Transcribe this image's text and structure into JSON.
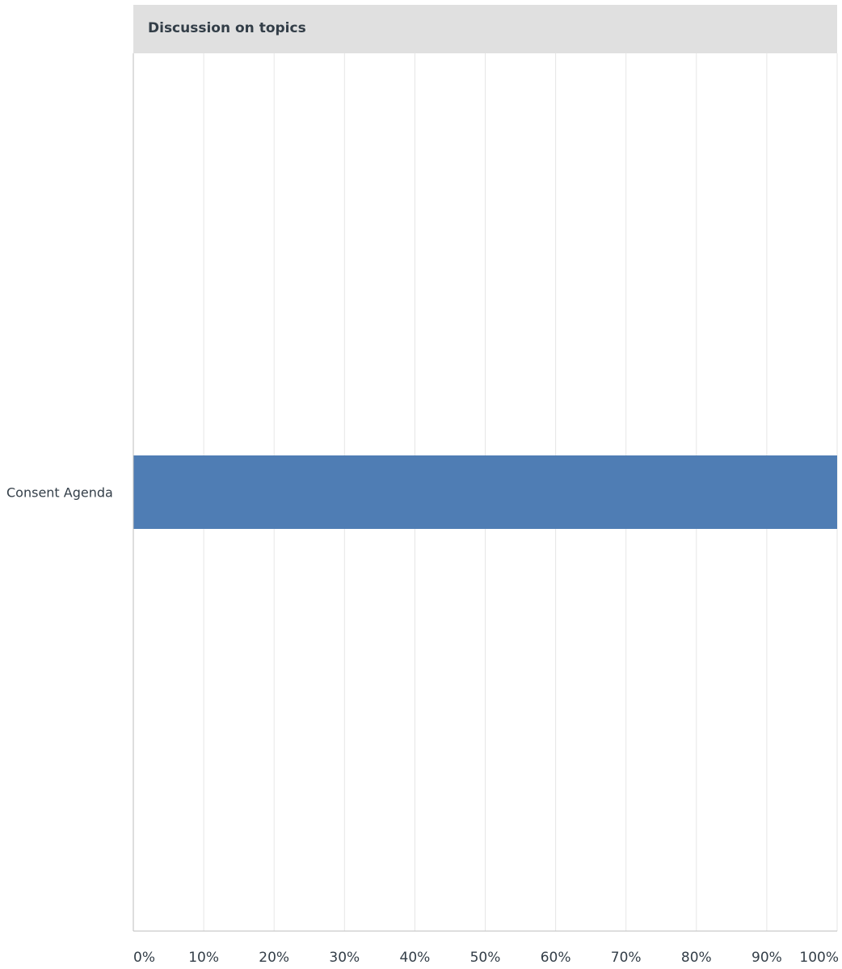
{
  "legend": {
    "series_label": "Discussion on topics"
  },
  "chart_data": {
    "type": "bar",
    "orientation": "horizontal",
    "categories": [
      "Consent Agenda"
    ],
    "series": [
      {
        "name": "Discussion on topics",
        "values": [
          100
        ]
      }
    ],
    "x_ticks": [
      "0%",
      "10%",
      "20%",
      "30%",
      "40%",
      "50%",
      "60%",
      "70%",
      "80%",
      "90%",
      "100%"
    ],
    "xlim": [
      0,
      100
    ],
    "grid": true,
    "legend_position": "top",
    "colors": {
      "bar": "#4f7db4",
      "grid": "#e6e6e6",
      "axis": "#bdbdbd",
      "text": "#333e48",
      "legend_bg": "#e0e0e0"
    }
  }
}
